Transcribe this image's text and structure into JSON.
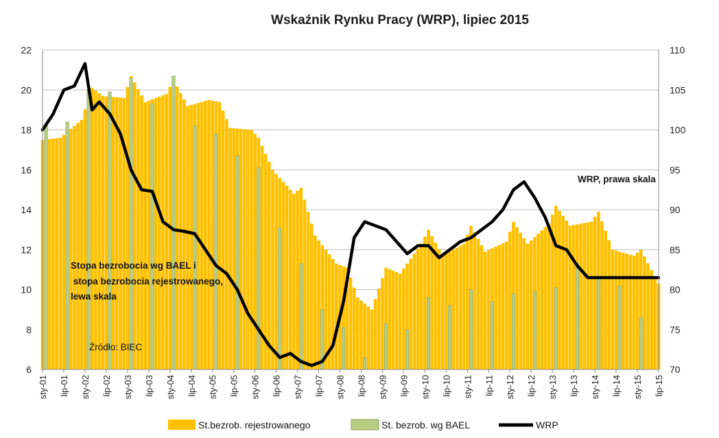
{
  "chart_data": {
    "type": "bar",
    "title": "Wskaźnik Rynku Pracy (WRP), lipiec 2015",
    "y_left": {
      "ylim": [
        6,
        22
      ],
      "ticks": [
        6,
        8,
        10,
        12,
        14,
        16,
        18,
        20,
        22
      ]
    },
    "y_right": {
      "ylim": [
        70,
        110
      ],
      "ticks": [
        70,
        75,
        80,
        85,
        90,
        95,
        100,
        105,
        110
      ]
    },
    "grid": true,
    "x_tick_labels": [
      "sty-01",
      "lip-01",
      "sty-02",
      "lip-02",
      "sty-03",
      "lip-03",
      "sty-04",
      "lip-04",
      "sty-05",
      "lip-05",
      "sty-06",
      "lip-06",
      "sty-07",
      "lip-07",
      "sty-08",
      "lip-08",
      "sty-09",
      "lip-09",
      "sty-10",
      "lip-10",
      "sty-11",
      "lip-11",
      "sty-12",
      "lip-12",
      "sty-13",
      "lip-13",
      "sty-14",
      "lip-14",
      "sty-15",
      "lip-15"
    ],
    "series": [
      {
        "name": "St.bezrob. rejestrowanego",
        "type": "bar",
        "axis": "left",
        "color": "#FFC000",
        "x": [
          "2001-01",
          "2001-06",
          "2001-12",
          "2002-03",
          "2002-06",
          "2002-12",
          "2003-02",
          "2003-06",
          "2003-12",
          "2004-02",
          "2004-06",
          "2004-12",
          "2005-03",
          "2005-06",
          "2005-12",
          "2006-02",
          "2006-06",
          "2006-12",
          "2007-02",
          "2007-06",
          "2007-12",
          "2008-03",
          "2008-06",
          "2008-10",
          "2009-02",
          "2009-06",
          "2009-12",
          "2010-02",
          "2010-06",
          "2010-12",
          "2011-02",
          "2011-06",
          "2011-12",
          "2012-02",
          "2012-06",
          "2012-12",
          "2013-02",
          "2013-06",
          "2013-12",
          "2014-02",
          "2014-06",
          "2014-12",
          "2015-02",
          "2015-07"
        ],
        "values": [
          17.5,
          17.6,
          18.5,
          20.1,
          19.7,
          19.6,
          20.7,
          19.4,
          19.8,
          20.5,
          19.2,
          19.5,
          19.4,
          18.1,
          18.0,
          17.6,
          16.0,
          14.8,
          15.1,
          12.7,
          11.3,
          11.1,
          9.6,
          9.0,
          11.1,
          10.8,
          12.3,
          13.0,
          11.7,
          12.3,
          13.2,
          11.9,
          12.4,
          13.4,
          12.3,
          13.3,
          14.2,
          13.2,
          13.4,
          13.9,
          12.0,
          11.7,
          12.0,
          10.3
        ]
      },
      {
        "name": "St. bezrob. wg BAEL",
        "type": "bar",
        "axis": "left",
        "color": "#B8CC84",
        "x": [
          "2001-Q1",
          "2001-Q3",
          "2002-Q1",
          "2002-Q3",
          "2003-Q1",
          "2003-Q3",
          "2004-Q1",
          "2004-Q3",
          "2005-Q1",
          "2005-Q3",
          "2006-Q1",
          "2006-Q3",
          "2007-Q1",
          "2007-Q3",
          "2008-Q1",
          "2008-Q3",
          "2009-Q1",
          "2009-Q3",
          "2010-Q1",
          "2010-Q3",
          "2011-Q1",
          "2011-Q3",
          "2012-Q1",
          "2012-Q3",
          "2013-Q1",
          "2013-Q3",
          "2014-Q1",
          "2014-Q3",
          "2015-Q1"
        ],
        "values": [
          18.3,
          18.4,
          20.0,
          19.9,
          20.6,
          19.3,
          20.7,
          18.2,
          17.8,
          16.7,
          16.1,
          13.1,
          11.3,
          9.0,
          8.1,
          6.6,
          8.3,
          8.0,
          9.6,
          9.2,
          10.0,
          9.4,
          9.8,
          9.9,
          10.1,
          11.3,
          10.6,
          10.2,
          8.6
        ]
      },
      {
        "name": "WRP",
        "type": "line",
        "axis": "right",
        "color": "#000000",
        "x": [
          "2001-01",
          "2001-04",
          "2001-07",
          "2001-10",
          "2002-01",
          "2002-03",
          "2002-05",
          "2002-08",
          "2002-11",
          "2003-02",
          "2003-05",
          "2003-08",
          "2003-11",
          "2004-02",
          "2004-05",
          "2004-08",
          "2004-11",
          "2005-02",
          "2005-05",
          "2005-08",
          "2005-11",
          "2006-02",
          "2006-05",
          "2006-08",
          "2006-11",
          "2007-02",
          "2007-05",
          "2007-08",
          "2007-11",
          "2008-02",
          "2008-05",
          "2008-08",
          "2008-11",
          "2009-02",
          "2009-05",
          "2009-08",
          "2009-11",
          "2010-02",
          "2010-05",
          "2010-08",
          "2010-11",
          "2011-02",
          "2011-05",
          "2011-08",
          "2011-11",
          "2012-02",
          "2012-05",
          "2012-08",
          "2012-11",
          "2013-02",
          "2013-05",
          "2013-08",
          "2013-11",
          "2014-02",
          "2014-05",
          "2014-08",
          "2014-11",
          "2015-02",
          "2015-05",
          "2015-07"
        ],
        "values": [
          100.0,
          102.0,
          105.0,
          105.5,
          108.3,
          102.5,
          103.5,
          102.0,
          99.5,
          95.0,
          92.5,
          92.3,
          88.5,
          87.5,
          87.3,
          87.0,
          85.0,
          83.0,
          82.0,
          80.0,
          77.0,
          75.0,
          73.0,
          71.5,
          72.0,
          71.0,
          70.5,
          71.0,
          73.0,
          78.5,
          86.5,
          88.5,
          88.0,
          87.5,
          86.0,
          84.5,
          85.5,
          85.5,
          84.0,
          85.0,
          86.0,
          86.5,
          87.5,
          88.5,
          90.0,
          92.5,
          93.5,
          91.5,
          89.0,
          85.5,
          85.0,
          83.0,
          81.5,
          81.5,
          81.5,
          81.5,
          81.5,
          81.5,
          81.5,
          81.5
        ]
      }
    ],
    "annotations": [
      "WRP, prawa skala",
      "Stopa bezrobocia wg BAEL i",
      " stopa bezrobocia rejestrowanego,",
      "lewa skala",
      "Źródło: BIEC"
    ],
    "legend": {
      "placement": "bottom",
      "items": [
        "St.bezrob. rejestrowanego",
        "St. bezrob. wg BAEL",
        "WRP"
      ]
    }
  }
}
